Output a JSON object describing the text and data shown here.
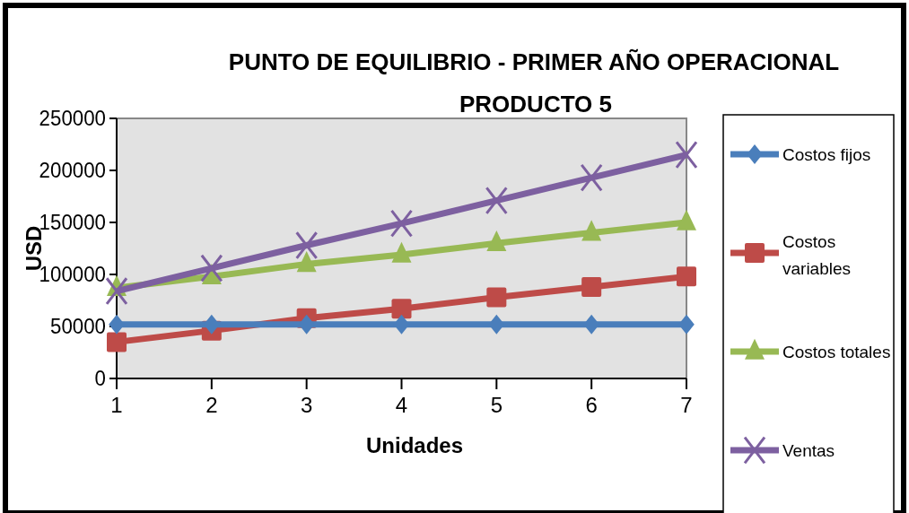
{
  "chart_data": {
    "type": "line",
    "title": "PUNTO DE EQUILIBRIO  - PRIMER AÑO OPERACIONAL",
    "subtitle": "PRODUCTO 5",
    "xlabel": "Unidades",
    "ylabel": "USD",
    "x": [
      1,
      2,
      3,
      4,
      5,
      6,
      7
    ],
    "xlim": [
      1,
      7
    ],
    "xticks": [
      1,
      2,
      3,
      4,
      5,
      6,
      7
    ],
    "ylim": [
      0,
      250000
    ],
    "yticks": [
      0,
      50000,
      100000,
      150000,
      200000,
      250000
    ],
    "grid": false,
    "legend": "right",
    "series": [
      {
        "name": "Costos fijos",
        "color": "#4a7ebb",
        "marker": "diamond",
        "values": [
          52000,
          52000,
          52000,
          52000,
          52000,
          52000,
          52000
        ]
      },
      {
        "name": "Costos variables",
        "color": "#be4b48",
        "marker": "square",
        "values": [
          35000,
          46000,
          58000,
          67000,
          78000,
          88000,
          98000
        ]
      },
      {
        "name": "Costos totales",
        "color": "#98b954",
        "marker": "triangle",
        "values": [
          87000,
          98000,
          110000,
          119000,
          130000,
          140000,
          150000
        ]
      },
      {
        "name": "Ventas",
        "color": "#7d60a0",
        "marker": "cross",
        "values": [
          84000,
          106000,
          128000,
          149000,
          171000,
          193000,
          215000
        ]
      }
    ]
  }
}
